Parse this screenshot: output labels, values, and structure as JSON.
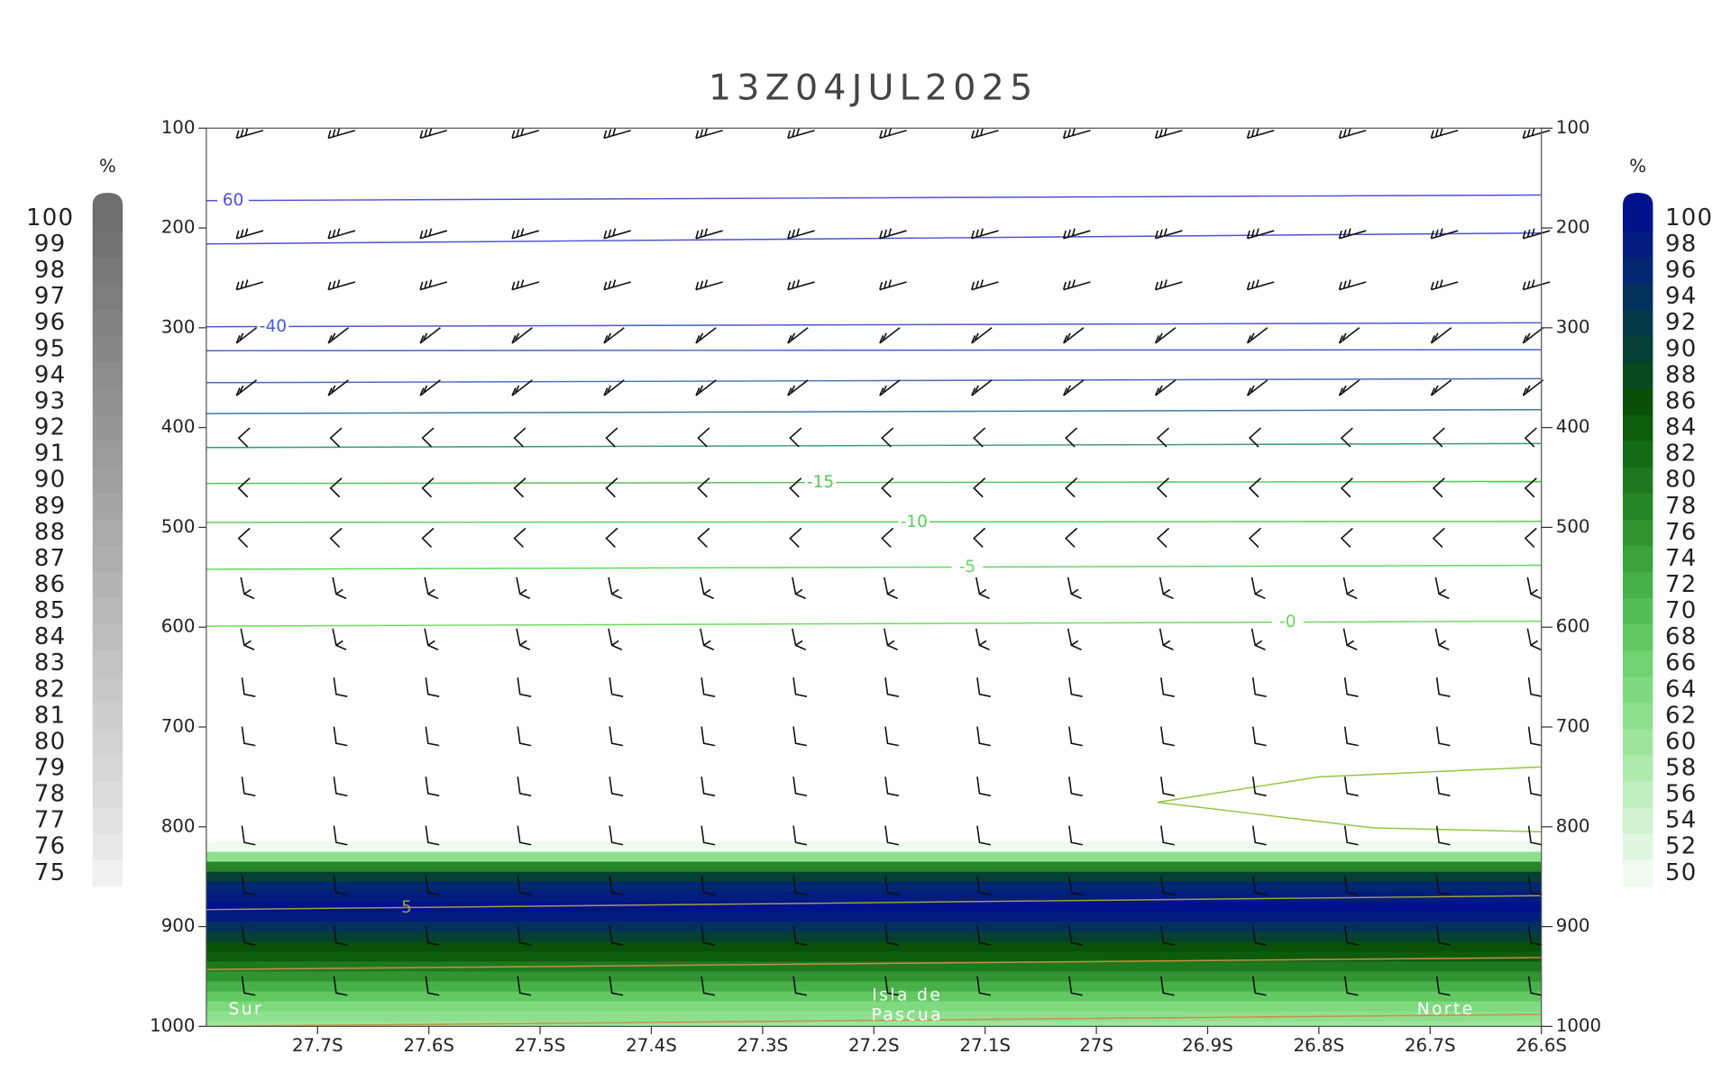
{
  "chart_data": {
    "type": "cross-section",
    "title": "13Z04JUL2025",
    "xlim": [
      -27.8,
      -26.6
    ],
    "xticks": [
      {
        "value": -27.7,
        "label": "27.7S"
      },
      {
        "value": -27.6,
        "label": "27.6S"
      },
      {
        "value": -27.5,
        "label": "27.5S"
      },
      {
        "value": -27.4,
        "label": "27.4S"
      },
      {
        "value": -27.3,
        "label": "27.3S"
      },
      {
        "value": -27.2,
        "label": "27.2S"
      },
      {
        "value": -27.1,
        "label": "27.1S"
      },
      {
        "value": -27.0,
        "label": "27S"
      },
      {
        "value": -26.9,
        "label": "26.9S"
      },
      {
        "value": -26.8,
        "label": "26.8S"
      },
      {
        "value": -26.7,
        "label": "26.7S"
      },
      {
        "value": -26.6,
        "label": "26.6S"
      }
    ],
    "ylim": [
      100,
      1000
    ],
    "yticks": [
      100,
      200,
      300,
      400,
      500,
      600,
      700,
      800,
      900,
      1000
    ],
    "annotations": [
      {
        "text": "Sur",
        "x": -27.78,
        "y": 983
      },
      {
        "text": "Isla de",
        "x": -27.17,
        "y": 969
      },
      {
        "text": "Pascua",
        "x": -27.17,
        "y": 989
      },
      {
        "text": "Norte",
        "x": -26.66,
        "y": 983
      }
    ],
    "colorbars": [
      {
        "side": "left",
        "unit": "%",
        "levels": [
          100,
          99,
          98,
          97,
          96,
          95,
          94,
          93,
          92,
          91,
          90,
          89,
          88,
          87,
          86,
          85,
          84,
          83,
          82,
          81,
          80,
          79,
          78,
          77,
          76,
          75
        ],
        "colors": [
          "#6e6e6e",
          "#737373",
          "#787878",
          "#7d7d7d",
          "#828282",
          "#878787",
          "#8c8c8c",
          "#919191",
          "#969696",
          "#9b9b9b",
          "#a0a0a0",
          "#a5a5a5",
          "#aaaaaa",
          "#afafaf",
          "#b4b4b4",
          "#b9b9b9",
          "#bebebe",
          "#c3c3c3",
          "#c8c8c8",
          "#cdcdcd",
          "#d2d2d2",
          "#d7d7d7",
          "#dcdcdc",
          "#e1e1e1",
          "#e8e8e8",
          "#f0f0f0"
        ]
      },
      {
        "side": "right",
        "unit": "%",
        "levels": [
          100,
          98,
          96,
          94,
          92,
          90,
          88,
          86,
          84,
          82,
          80,
          78,
          76,
          74,
          72,
          70,
          68,
          66,
          64,
          62,
          60,
          58,
          56,
          54,
          52,
          50
        ],
        "colors": [
          "#00128c",
          "#021c80",
          "#032670",
          "#04305c",
          "#053a48",
          "#063f34",
          "#074a20",
          "#085008",
          "#0d5c0d",
          "#156a15",
          "#1e781e",
          "#278627",
          "#319431",
          "#3ca23c",
          "#48b048",
          "#55bd55",
          "#62c862",
          "#70d270",
          "#7fda7f",
          "#8ee08e",
          "#9de59d",
          "#aeeaae",
          "#bfeebf",
          "#d0f2d0",
          "#e0f6e0",
          "#f0fbf0"
        ]
      }
    ],
    "humidity": {
      "p": [
        820,
        830,
        840,
        850,
        860,
        870,
        880,
        890,
        900,
        910,
        920,
        930,
        940,
        950,
        960,
        970,
        980,
        990,
        1000
      ],
      "values": [
        50,
        62,
        78,
        90,
        96,
        99,
        100,
        98,
        94,
        90,
        86,
        84,
        80,
        76,
        72,
        68,
        64,
        62,
        60
      ]
    },
    "contours": [
      {
        "label": "60",
        "color": "#5050d8",
        "x": [
          -27.8,
          -26.6
        ],
        "values": [
          172.6,
          167
        ]
      },
      {
        "color": "#5050d8",
        "x": [
          -27.8,
          -26.6
        ],
        "values": [
          216,
          205
        ]
      },
      {
        "label": "-40",
        "color": "#4a5ad0",
        "x": [
          -27.8,
          -26.6
        ],
        "values": [
          299,
          295
        ]
      },
      {
        "color": "#4a60c8",
        "x": [
          -27.8,
          -26.6
        ],
        "values": [
          323,
          322
        ]
      },
      {
        "color": "#4a6ac0",
        "x": [
          -27.8,
          -26.6
        ],
        "values": [
          355,
          351
        ]
      },
      {
        "color": "#3a7aa0",
        "x": [
          -27.8,
          -26.6
        ],
        "values": [
          386,
          382
        ]
      },
      {
        "color": "#3a9a70",
        "x": [
          -27.8,
          -26.6
        ],
        "values": [
          420,
          416
        ]
      },
      {
        "label": "-15",
        "color": "#50c850",
        "x": [
          -27.8,
          -26.6
        ],
        "values": [
          456,
          454
        ]
      },
      {
        "label": "-10",
        "color": "#58d058",
        "x": [
          -27.8,
          -26.6
        ],
        "values": [
          495,
          494
        ]
      },
      {
        "label": "-5",
        "color": "#60d860",
        "x": [
          -27.8,
          -26.6
        ],
        "values": [
          542,
          538
        ]
      },
      {
        "label": "-0",
        "color": "#70d860",
        "x": [
          -27.8,
          -26.6
        ],
        "values": [
          599,
          594
        ]
      },
      {
        "color": "#90c840",
        "x": [
          -26.6,
          -26.8,
          -26.945,
          -26.752,
          -26.6
        ],
        "values": [
          740,
          750,
          775.5,
          801,
          805
        ]
      },
      {
        "label": "5",
        "color": "#a0a040",
        "x": [
          -27.8,
          -26.6
        ],
        "values": [
          883,
          869
        ]
      },
      {
        "color": "#c89040",
        "x": [
          -27.8,
          -26.6
        ],
        "values": [
          943,
          931
        ]
      },
      {
        "color": "#c89040",
        "x": [
          -27.8,
          -26.6
        ],
        "values": [
          1000,
          988
        ]
      }
    ]
  }
}
